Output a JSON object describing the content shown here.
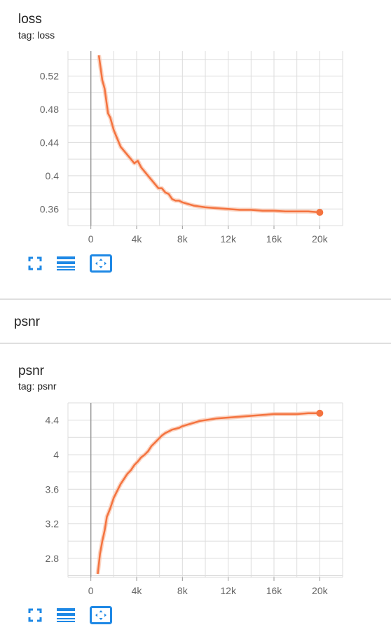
{
  "colors": {
    "line": "#f4733f",
    "line_raw": "#f9c5ad",
    "icon": "#1e88e5",
    "grid": "#dcdcdc",
    "axis": "#999999"
  },
  "icons": {
    "fullscreen": "fullscreen-icon",
    "log_scale": "lines-icon",
    "fit_domain": "fit-domain-icon"
  },
  "section": {
    "title": "psnr"
  },
  "cards": [
    {
      "title": "loss",
      "tag": "tag: loss"
    },
    {
      "title": "psnr",
      "tag": "tag: psnr"
    }
  ],
  "chart_data": [
    {
      "type": "line",
      "title": "loss",
      "xlim": [
        -2000,
        22000
      ],
      "ylim": [
        0.34,
        0.55
      ],
      "x_ticks": [
        "0",
        "4k",
        "8k",
        "12k",
        "16k",
        "20k"
      ],
      "x_tick_values": [
        0,
        4000,
        8000,
        12000,
        16000,
        20000
      ],
      "y_ticks": [
        "0.36",
        "0.4",
        "0.44",
        "0.48",
        "0.52"
      ],
      "y_tick_values": [
        0.36,
        0.4,
        0.44,
        0.48,
        0.52
      ],
      "grid": true,
      "series": [
        {
          "x": [
            700,
            1000,
            1200,
            1500,
            1700,
            2000,
            2300,
            2600,
            2900,
            3200,
            3500,
            3800,
            4100,
            4400,
            4700,
            5000,
            5300,
            5600,
            5900,
            6200,
            6500,
            6800,
            7100,
            7400,
            7700,
            8000,
            8500,
            9000,
            9500,
            10000,
            11000,
            12000,
            13000,
            14000,
            15000,
            16000,
            17000,
            18000,
            19000,
            20000
          ],
          "y": [
            0.545,
            0.515,
            0.505,
            0.475,
            0.47,
            0.455,
            0.445,
            0.435,
            0.43,
            0.425,
            0.42,
            0.415,
            0.418,
            0.41,
            0.405,
            0.4,
            0.395,
            0.39,
            0.385,
            0.385,
            0.38,
            0.378,
            0.372,
            0.37,
            0.37,
            0.368,
            0.366,
            0.364,
            0.363,
            0.362,
            0.361,
            0.36,
            0.359,
            0.359,
            0.358,
            0.358,
            0.357,
            0.357,
            0.357,
            0.356
          ]
        }
      ]
    },
    {
      "type": "line",
      "title": "psnr",
      "xlim": [
        -2000,
        22000
      ],
      "ylim": [
        2.58,
        4.6
      ],
      "x_ticks": [
        "0",
        "4k",
        "8k",
        "12k",
        "16k",
        "20k"
      ],
      "x_tick_values": [
        0,
        4000,
        8000,
        12000,
        16000,
        20000
      ],
      "y_ticks": [
        "2.8",
        "3.2",
        "3.6",
        "4",
        "4.4"
      ],
      "y_tick_values": [
        2.8,
        3.2,
        3.6,
        4,
        4.4
      ],
      "grid": true,
      "series": [
        {
          "x": [
            600,
            800,
            1000,
            1200,
            1400,
            1700,
            2000,
            2300,
            2600,
            2900,
            3200,
            3500,
            3800,
            4100,
            4400,
            4700,
            5000,
            5300,
            5600,
            5900,
            6200,
            6500,
            6800,
            7100,
            7400,
            7700,
            8000,
            8500,
            9000,
            9500,
            10000,
            11000,
            12000,
            13000,
            14000,
            15000,
            16000,
            17000,
            18000,
            19000,
            20000
          ],
          "y": [
            2.62,
            2.85,
            3.0,
            3.12,
            3.28,
            3.38,
            3.5,
            3.58,
            3.66,
            3.72,
            3.78,
            3.82,
            3.88,
            3.92,
            3.97,
            4.0,
            4.04,
            4.1,
            4.14,
            4.18,
            4.22,
            4.25,
            4.27,
            4.29,
            4.3,
            4.31,
            4.33,
            4.35,
            4.37,
            4.39,
            4.4,
            4.42,
            4.43,
            4.44,
            4.45,
            4.46,
            4.47,
            4.47,
            4.47,
            4.48,
            4.48
          ]
        }
      ]
    }
  ]
}
